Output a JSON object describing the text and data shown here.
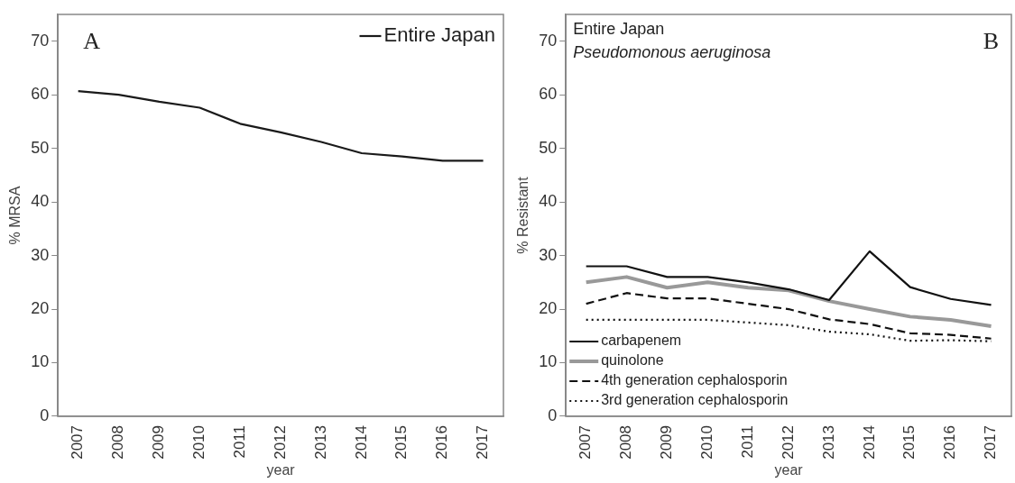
{
  "chart_data": [
    {
      "type": "line",
      "xlabel": "year",
      "ylabel": "% MRSA",
      "categories": [
        "2007",
        "2008",
        "2009",
        "2010",
        "2011",
        "2012",
        "2013",
        "2014",
        "2015",
        "2016",
        "2017"
      ],
      "series": [
        {
          "name": "Entire Japan",
          "color": "#1a1a1a",
          "line_style": "solid",
          "values": [
            60.7,
            60.0,
            58.7,
            57.6,
            54.6,
            53.0,
            51.2,
            49.1,
            48.5,
            47.7,
            47.7
          ]
        }
      ],
      "ylim": [
        0,
        75
      ],
      "yticks": [
        0,
        10,
        20,
        30,
        40,
        50,
        60,
        70
      ],
      "grid": false,
      "legend": "top right",
      "marker": "none",
      "annotations": [
        "A"
      ]
    },
    {
      "type": "line",
      "xlabel": "year",
      "ylabel": "% Resistant",
      "categories": [
        "2007",
        "2008",
        "2009",
        "2010",
        "2011",
        "2012",
        "2013",
        "2014",
        "2015",
        "2016",
        "2017"
      ],
      "series": [
        {
          "name": "carbapenem",
          "color": "#111111",
          "line_style": "solid",
          "values": [
            28,
            28,
            26,
            26,
            25,
            23.7,
            21.7,
            30.8,
            24.1,
            21.9,
            20.8
          ]
        },
        {
          "name": "quinolone",
          "color": "#999999",
          "line_style": "solid",
          "values": [
            25,
            26,
            24,
            25,
            24,
            23.5,
            21.5,
            20,
            18.6,
            18,
            16.8
          ]
        },
        {
          "name": "4th generation cephalosporin",
          "color": "#111111",
          "line_style": "dashed",
          "values": [
            21,
            23,
            22,
            22,
            21,
            20,
            18.1,
            17.2,
            15.5,
            15.2,
            14.5
          ]
        },
        {
          "name": "3rd generation cephalosporin",
          "color": "#111111",
          "line_style": "dotted",
          "values": [
            18,
            18,
            18,
            18,
            17.5,
            17,
            15.8,
            15.3,
            14.1,
            14.2,
            14
          ]
        }
      ],
      "ylim": [
        0,
        75
      ],
      "yticks": [
        0,
        10,
        20,
        30,
        40,
        50,
        60,
        70
      ],
      "grid": false,
      "legend": "bottom left",
      "marker": "none",
      "annotations": [
        "Entire Japan",
        "Pseudomonous aeruginosa",
        "B"
      ]
    }
  ]
}
